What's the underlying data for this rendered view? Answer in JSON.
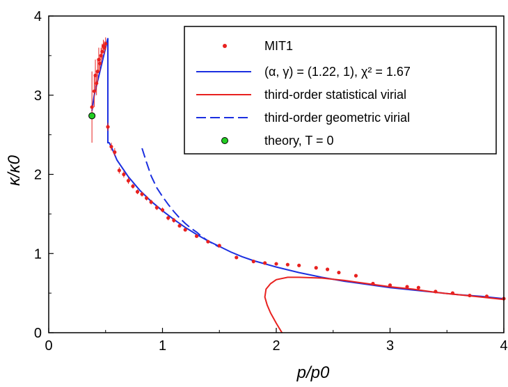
{
  "chart_data": {
    "type": "scatter",
    "xlabel": "p/p0",
    "ylabel": "κ/κ0",
    "xlim": [
      0,
      4
    ],
    "ylim": [
      0,
      4
    ],
    "x_ticks": [
      "0",
      "1",
      "2",
      "3",
      "4"
    ],
    "y_ticks": [
      "0",
      "1",
      "2",
      "3",
      "4"
    ],
    "grid": false,
    "legend_position": "top-right",
    "legend": [
      {
        "label": "MIT1"
      },
      {
        "label": "(α, γ)  = (1.22, 1), χ² = 1.67"
      },
      {
        "label": "third-order statistical virial"
      },
      {
        "label": "third-order geometric virial"
      },
      {
        "label": "theory, T = 0"
      }
    ],
    "colors": {
      "mit1": "#e8211f",
      "fit": "#1b2fe0",
      "statistical": "#e8211f",
      "geometric": "#1b2fe0",
      "theory": "#22cc22"
    },
    "series": [
      {
        "name": "MIT1",
        "kind": "points",
        "x": [
          0.38,
          0.4,
          0.41,
          0.42,
          0.43,
          0.44,
          0.45,
          0.46,
          0.47,
          0.48,
          0.49,
          0.5,
          0.52,
          0.55,
          0.58,
          0.62,
          0.66,
          0.7,
          0.74,
          0.78,
          0.82,
          0.86,
          0.9,
          0.95,
          1.0,
          1.05,
          1.1,
          1.15,
          1.2,
          1.3,
          1.4,
          1.5,
          1.65,
          1.8,
          1.9,
          2.0,
          2.1,
          2.2,
          2.35,
          2.45,
          2.55,
          2.7,
          2.85,
          3.0,
          3.15,
          3.25,
          3.4,
          3.55,
          3.7,
          3.85,
          4.0
        ],
        "y": [
          2.85,
          3.05,
          3.25,
          3.15,
          3.3,
          3.45,
          3.4,
          3.5,
          3.55,
          3.62,
          3.6,
          3.65,
          2.6,
          2.35,
          2.28,
          2.05,
          2.0,
          1.92,
          1.85,
          1.78,
          1.75,
          1.7,
          1.65,
          1.58,
          1.55,
          1.45,
          1.42,
          1.35,
          1.3,
          1.22,
          1.15,
          1.1,
          0.95,
          0.9,
          0.88,
          0.87,
          0.86,
          0.85,
          0.82,
          0.8,
          0.76,
          0.72,
          0.62,
          0.6,
          0.58,
          0.57,
          0.52,
          0.5,
          0.47,
          0.46,
          0.43
        ],
        "yerr": [
          0.45,
          0.2,
          0.2,
          0.15,
          0.15,
          0.15,
          0.1,
          0.1,
          0.1,
          0.08,
          0.08,
          0.08,
          0.05,
          0.05,
          0.05,
          0.04,
          0.04,
          0.04,
          0.03,
          0.03,
          0.03,
          0.03,
          0.03,
          0.03,
          0.03,
          0.03,
          0.03,
          0.02,
          0.02,
          0.02,
          0.02,
          0.02,
          0.02,
          0.02,
          0.02,
          0.02,
          0.02,
          0.02,
          0.02,
          0.02,
          0.02,
          0.02,
          0.02,
          0.02,
          0.02,
          0.02,
          0.02,
          0.02,
          0.02,
          0.02,
          0.02
        ]
      },
      {
        "name": "(α, γ)  = (1.22, 1), χ² = 1.67",
        "kind": "line",
        "x": [
          0.38,
          0.4,
          0.45,
          0.5,
          0.52,
          0.52,
          0.53,
          0.55,
          0.6,
          0.7,
          0.8,
          0.9,
          1.0,
          1.1,
          1.2,
          1.3,
          1.4,
          1.5,
          1.6,
          1.7,
          1.8,
          2.0,
          2.2,
          2.4,
          2.6,
          2.8,
          3.0,
          3.2,
          3.4,
          3.6,
          3.8,
          4.0
        ],
        "y": [
          2.8,
          3.0,
          3.3,
          3.6,
          3.72,
          2.4,
          2.4,
          2.35,
          2.18,
          1.97,
          1.8,
          1.66,
          1.54,
          1.43,
          1.33,
          1.24,
          1.16,
          1.09,
          1.02,
          0.96,
          0.91,
          0.83,
          0.76,
          0.7,
          0.65,
          0.61,
          0.57,
          0.54,
          0.51,
          0.48,
          0.46,
          0.43
        ]
      },
      {
        "name": "third-order statistical virial",
        "kind": "line",
        "x": [
          2.05,
          2.0,
          1.95,
          1.92,
          1.9,
          1.91,
          1.95,
          2.0,
          2.1,
          2.2,
          2.4,
          2.6,
          2.8,
          3.0,
          3.2,
          3.4,
          3.6,
          3.8,
          4.0
        ],
        "y": [
          0.0,
          0.12,
          0.25,
          0.35,
          0.45,
          0.55,
          0.62,
          0.67,
          0.7,
          0.7,
          0.69,
          0.66,
          0.62,
          0.58,
          0.55,
          0.51,
          0.48,
          0.45,
          0.42
        ]
      },
      {
        "name": "third-order geometric virial",
        "kind": "dashed",
        "x": [
          0.82,
          0.86,
          0.9,
          0.95,
          1.0,
          1.05,
          1.1,
          1.15,
          1.2,
          1.25,
          1.3,
          1.35,
          1.4,
          1.45,
          1.5
        ],
        "y": [
          2.33,
          2.15,
          1.98,
          1.83,
          1.72,
          1.62,
          1.53,
          1.45,
          1.38,
          1.32,
          1.27,
          1.21,
          1.16,
          1.12,
          1.08
        ]
      },
      {
        "name": "theory, T = 0",
        "kind": "marker",
        "x": [
          0.38
        ],
        "y": [
          2.74
        ]
      }
    ]
  }
}
